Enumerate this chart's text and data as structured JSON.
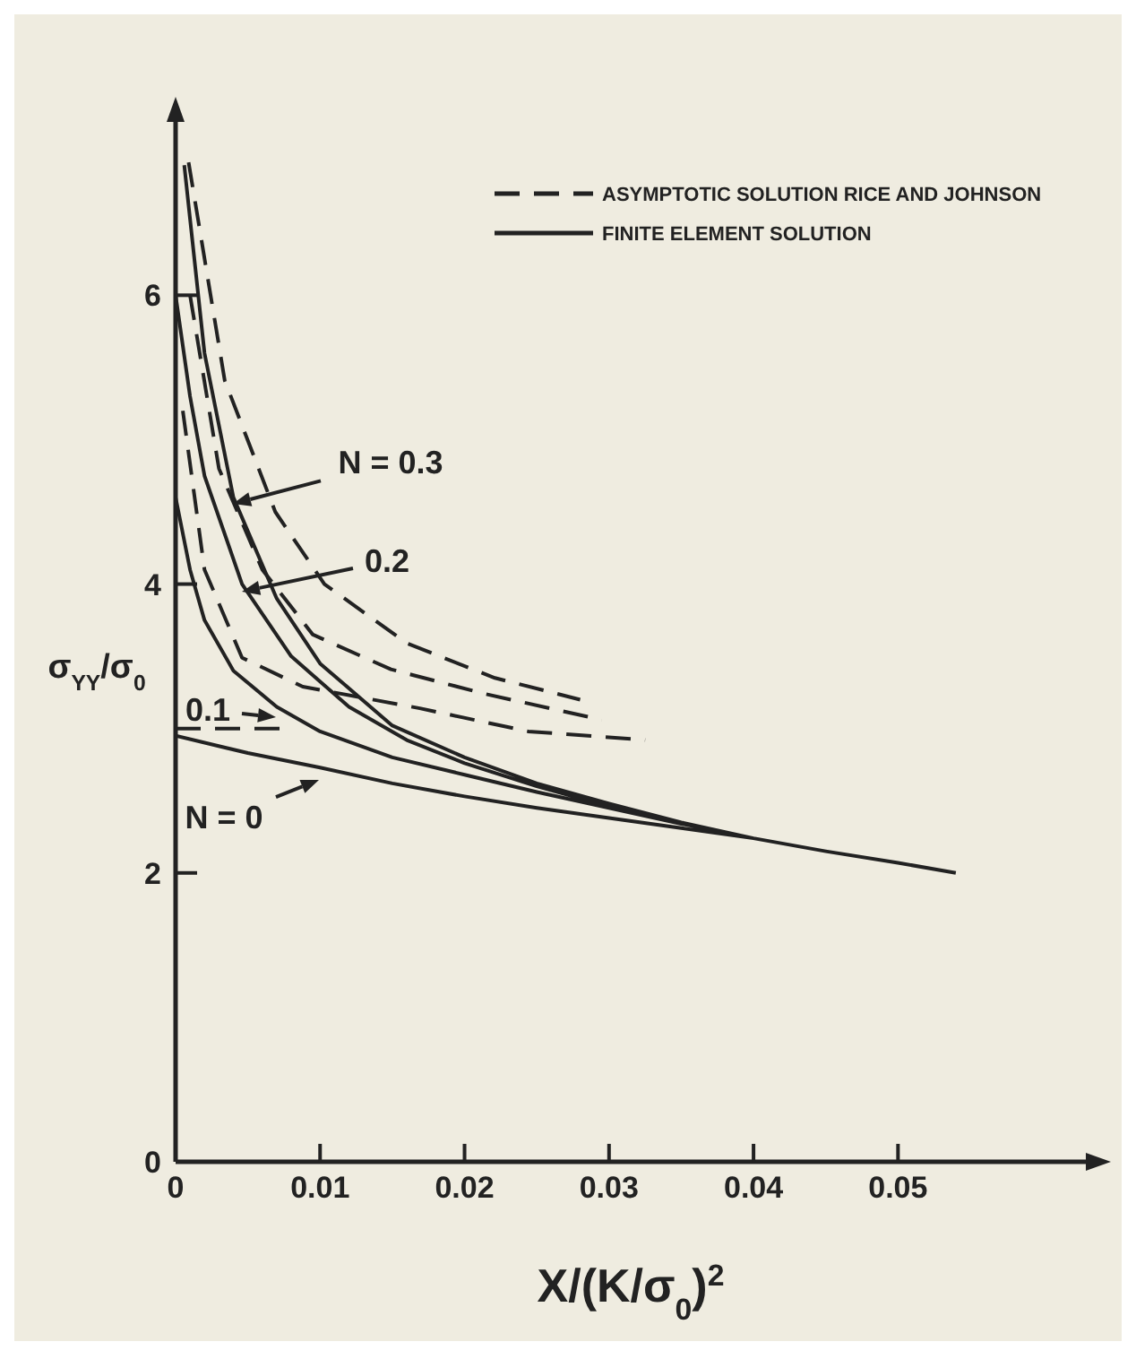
{
  "chart_data": {
    "type": "line",
    "xlabel": "X/(K/σ$_{0}$)$^{2}$",
    "ylabel": "σ$_{YY}$/σ$_{0}$",
    "xlim": [
      0,
      0.063
    ],
    "xticks": [
      0,
      0.01,
      0.02,
      0.03,
      0.04,
      0.05
    ],
    "ylim": [
      0,
      7.2
    ],
    "yticks": [
      0,
      2,
      4,
      6
    ],
    "grid": false,
    "legend": "top right",
    "marker": "none",
    "series": [
      {
        "name": "ASYMPTOTIC SOLUTION RICE AND JOHNSON",
        "color": "#222222",
        "line_style": "dashed",
        "x": [
          0,
          0.008,
          null,
          0.0005,
          0.002,
          0.0046,
          0.0088,
          0.0169,
          0.0244,
          0.0325,
          null,
          0.001,
          0.003,
          0.006,
          0.0095,
          0.0149,
          0.0214,
          0.0295,
          null,
          0.0009,
          0.0034,
          0.0069,
          0.0103,
          0.016,
          0.0221,
          0.028
        ],
        "values": [
          3.0,
          3.0,
          null,
          5.2,
          4.1,
          3.49,
          3.29,
          3.14,
          2.98,
          2.92,
          null,
          6.0,
          4.8,
          4.1,
          3.65,
          3.41,
          3.24,
          3.06,
          null,
          6.92,
          5.41,
          4.5,
          4.0,
          3.59,
          3.35,
          3.2
        ]
      },
      {
        "name": "FINITE ELEMENT SOLUTION",
        "color": "#222222",
        "line_style": "solid",
        "x": [
          0,
          0.005,
          0.01,
          0.015,
          0.02,
          0.025,
          0.03,
          0.035,
          0.04,
          0.045,
          0.05,
          0.054,
          null,
          0,
          0.001,
          0.002,
          0.004,
          0.007,
          0.01,
          0.015,
          0.02,
          0.025,
          0.03,
          0.035,
          0.04,
          0.045,
          0.05,
          0.054,
          null,
          0,
          0.001,
          0.002,
          0.0046,
          0.008,
          0.012,
          0.016,
          0.02,
          0.025,
          0.03,
          0.035,
          0.04,
          0.045,
          0.05,
          0.054,
          null,
          0.0006,
          0.002,
          0.004,
          0.007,
          0.01,
          0.015,
          0.02,
          0.025,
          0.03,
          0.035,
          0.04,
          0.045,
          0.05,
          0.054
        ],
        "values": [
          2.95,
          2.83,
          2.73,
          2.62,
          2.53,
          2.45,
          2.38,
          2.31,
          2.24,
          2.15,
          2.07,
          2.0,
          null,
          4.6,
          4.1,
          3.75,
          3.4,
          3.15,
          2.98,
          2.8,
          2.68,
          2.56,
          2.45,
          2.34,
          2.24,
          2.15,
          2.07,
          2.0,
          null,
          6.0,
          5.3,
          4.75,
          4.0,
          3.5,
          3.15,
          2.92,
          2.76,
          2.6,
          2.46,
          2.34,
          2.24,
          2.15,
          2.07,
          2.0,
          null,
          6.9,
          5.6,
          4.6,
          3.9,
          3.45,
          3.02,
          2.8,
          2.62,
          2.48,
          2.35,
          2.24,
          2.15,
          2.07,
          2.0
        ]
      }
    ],
    "annotations": [
      "N = 0.3",
      "0.2",
      "0.1",
      "N = 0"
    ]
  }
}
